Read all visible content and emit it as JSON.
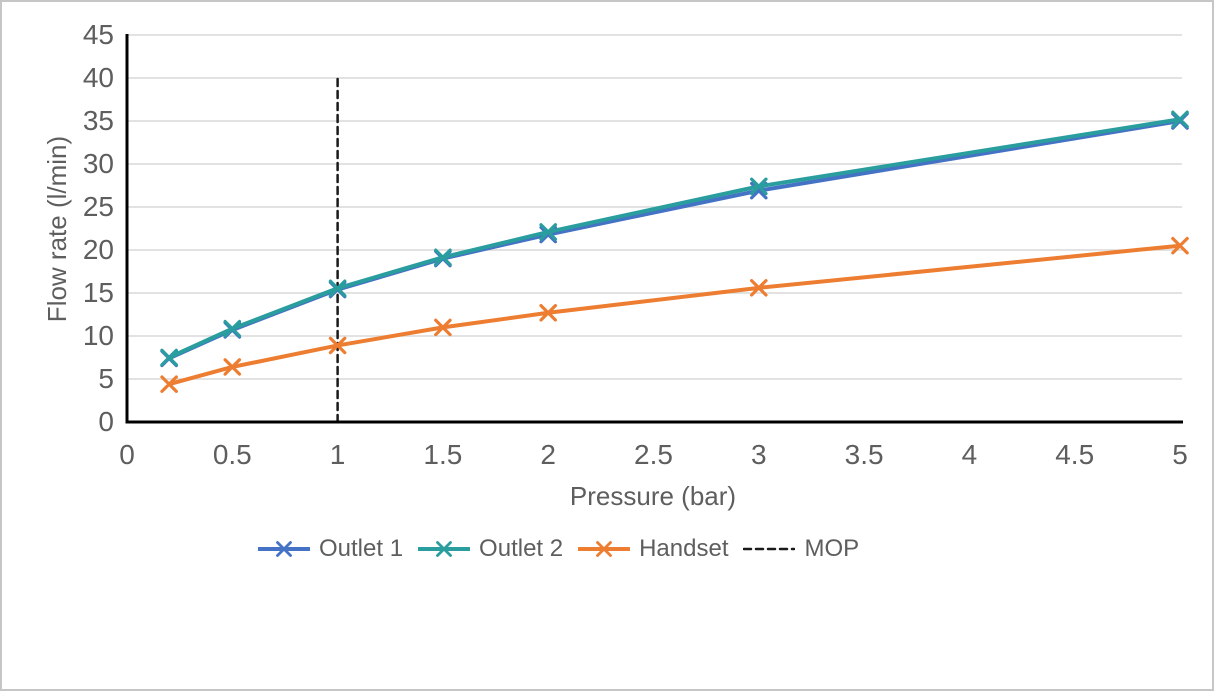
{
  "chart_data": {
    "type": "line",
    "title": "",
    "xlabel": "Pressure (bar)",
    "ylabel": "Flow rate (l/min)",
    "xlim": [
      0,
      5
    ],
    "ylim": [
      0,
      45
    ],
    "x_ticks": [
      "0",
      "0.5",
      "1",
      "1.5",
      "2",
      "2.5",
      "3",
      "3.5",
      "4",
      "4.5",
      "5"
    ],
    "y_ticks": [
      "0",
      "5",
      "10",
      "15",
      "20",
      "25",
      "30",
      "35",
      "40",
      "45"
    ],
    "grid": "horizontal",
    "legend_position": "bottom-center",
    "colors": {
      "outlet1": "#4472C4",
      "outlet2": "#2A9D9E",
      "handset": "#ED7D31",
      "mop": "#1a1a1a",
      "gridline": "#d9d9d9",
      "axis": "#000000",
      "text": "#5e5e5e"
    },
    "series": [
      {
        "name": "Outlet 1",
        "color": "#4472C4",
        "marker": "x",
        "style": "solid",
        "x": [
          0.2,
          0.5,
          1,
          1.5,
          2,
          3,
          5
        ],
        "y": [
          7.4,
          10.7,
          15.4,
          19.0,
          21.8,
          26.9,
          35.0
        ]
      },
      {
        "name": "Outlet 2",
        "color": "#2A9D9E",
        "marker": "x",
        "style": "solid",
        "x": [
          0.2,
          0.5,
          1,
          1.5,
          2,
          3,
          5
        ],
        "y": [
          7.5,
          10.85,
          15.55,
          19.15,
          22.1,
          27.4,
          35.2
        ]
      },
      {
        "name": "Handset",
        "color": "#ED7D31",
        "marker": "x",
        "style": "solid",
        "x": [
          0.2,
          0.5,
          1,
          1.5,
          2,
          3,
          5
        ],
        "y": [
          4.4,
          6.4,
          8.9,
          11.0,
          12.7,
          15.6,
          20.5
        ]
      },
      {
        "name": "MOP",
        "color": "#1a1a1a",
        "marker": "none",
        "style": "dashed",
        "x": [
          1,
          1
        ],
        "y": [
          0,
          40
        ]
      }
    ]
  }
}
